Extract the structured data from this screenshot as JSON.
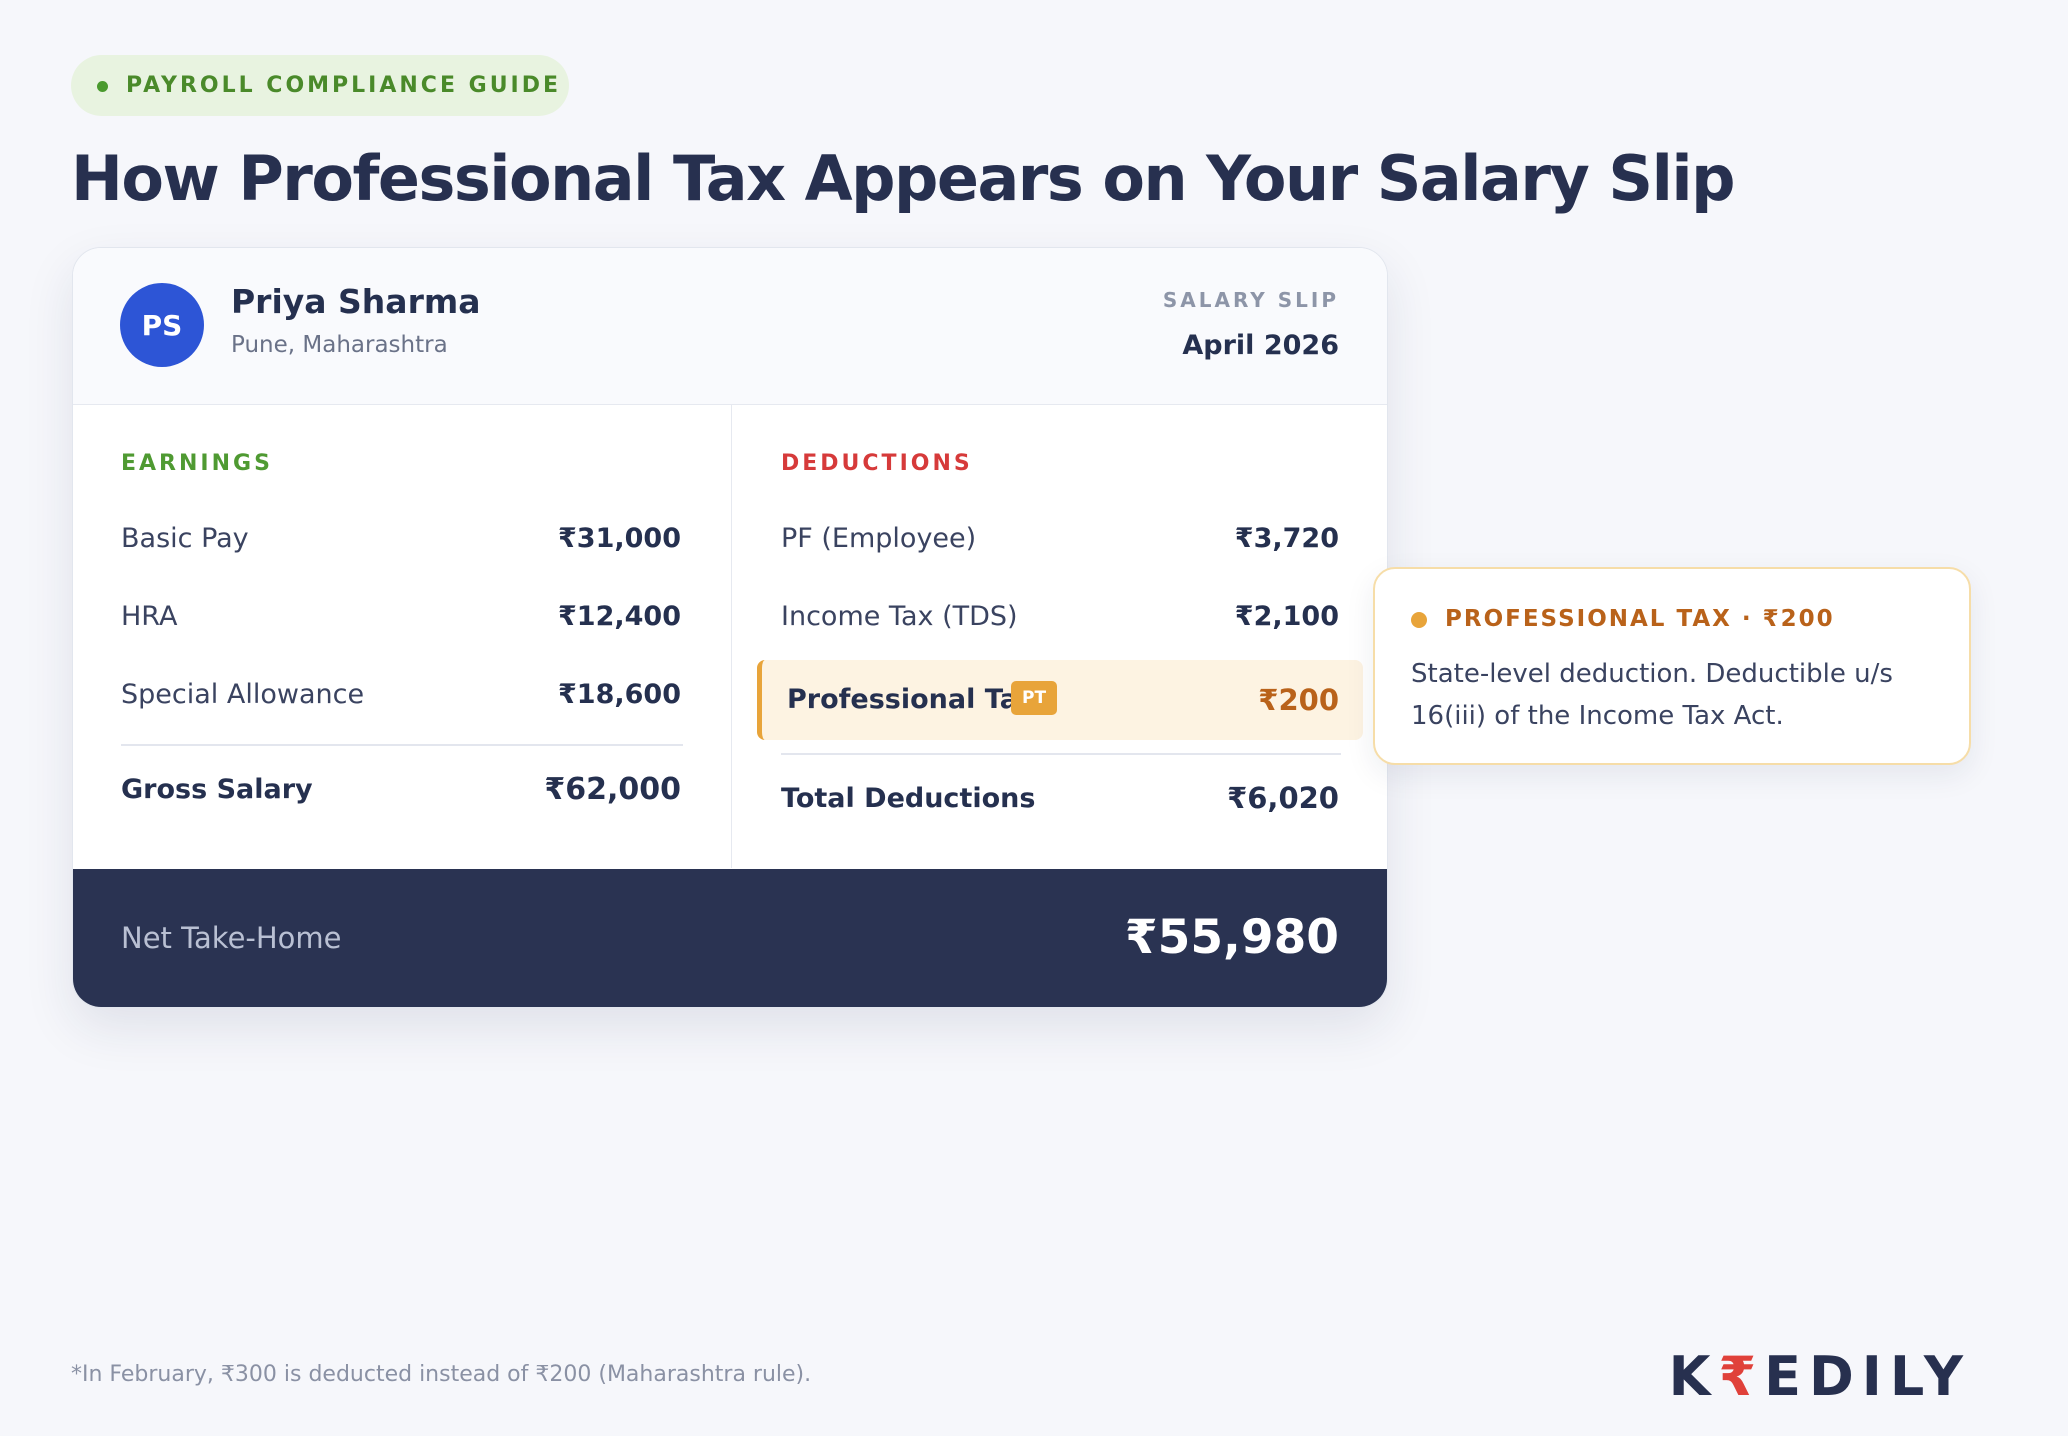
{
  "badge": "PAYROLL COMPLIANCE GUIDE",
  "title": "How Professional Tax Appears on Your Salary Slip",
  "slip": {
    "avatar": "PS",
    "name": "Priya Sharma",
    "location": "Pune, Maharashtra",
    "label": "SALARY SLIP",
    "period": "April 2026",
    "earnings": {
      "heading": "EARNINGS",
      "rows": [
        [
          "Basic Pay",
          "₹31,000"
        ],
        [
          "HRA",
          "₹12,400"
        ],
        [
          "Special Allowance",
          "₹18,600"
        ]
      ],
      "total": [
        "Gross Salary",
        "₹62,000"
      ]
    },
    "deductions": {
      "heading": "DEDUCTIONS",
      "rows": [
        [
          "PF (Employee)",
          "₹3,720"
        ],
        [
          "Income Tax (TDS)",
          "₹2,100"
        ]
      ],
      "highlight": {
        "label": "Professional Tax",
        "tag": "PT",
        "value": "₹200"
      },
      "total": [
        "Total Deductions",
        "₹6,020"
      ]
    },
    "net": [
      "Net Take-Home",
      "₹55,980"
    ]
  },
  "callout": {
    "title": "PROFESSIONAL TAX · ₹200",
    "text": "State-level deduction. Deductible u/s 16(iii) of the Income Tax Act."
  },
  "footnote": "*In February, ₹300 is deducted instead of ₹200 (Maharashtra rule).",
  "logo": {
    "before": "K",
    "mark": "₹",
    "after": "EDILY"
  }
}
